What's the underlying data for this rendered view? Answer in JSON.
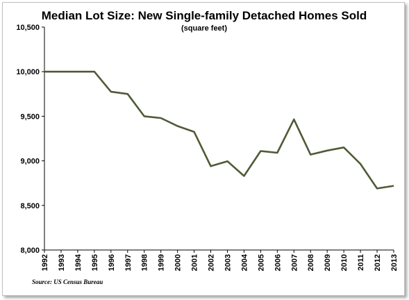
{
  "chart_data": {
    "type": "line",
    "title": "Median Lot Size: New Single-family Detached Homes Sold",
    "subtitle": "(square feet)",
    "xlabel": "",
    "ylabel": "",
    "source": "Source: US Census Bureau",
    "ylim": [
      8000,
      10500
    ],
    "yticks": [
      8000,
      8500,
      9000,
      9500,
      10000,
      10500
    ],
    "ytick_labels": [
      "8,000",
      "8,500",
      "9,000",
      "9,500",
      "10,000",
      "10,500"
    ],
    "categories": [
      "1992",
      "1993",
      "1994",
      "1995",
      "1996",
      "1997",
      "1998",
      "1999",
      "2000",
      "2001",
      "2002",
      "2003",
      "2004",
      "2005",
      "2006",
      "2007",
      "2008",
      "2009",
      "2010",
      "2011",
      "2012",
      "2013"
    ],
    "series": [
      {
        "values": [
          10000,
          10000,
          10000,
          10000,
          9775,
          9750,
          9500,
          9480,
          9390,
          9325,
          8940,
          8995,
          8830,
          9110,
          9090,
          9465,
          9070,
          9115,
          9150,
          8965,
          8690,
          8720
        ]
      }
    ],
    "line_color": "#4f5a36",
    "grid": false,
    "legend": "none"
  }
}
